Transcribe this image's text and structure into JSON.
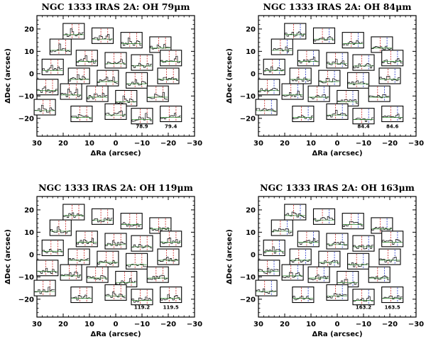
{
  "chart_data": [
    {
      "type": "spectral-map",
      "title": "NGC 1333 IRAS 2A: OH 79μm",
      "xlabel": "ΔRa (arcsec)",
      "ylabel": "ΔDec (arcsec)",
      "xlim": [
        30,
        -30
      ],
      "ylim": [
        -28,
        26
      ],
      "xticks": [
        "30",
        "20",
        "10",
        "0",
        "−10",
        "−20",
        "−30"
      ],
      "yticks": [
        "20",
        "10",
        "0",
        "−10",
        "−20"
      ],
      "line_labels": [
        "78.9",
        "79.4"
      ],
      "spaxels": [
        {
          "ra": 16,
          "dec": 19
        },
        {
          "ra": 5,
          "dec": 17
        },
        {
          "ra": -6,
          "dec": 15
        },
        {
          "ra": -17,
          "dec": 13
        },
        {
          "ra": 21,
          "dec": 12
        },
        {
          "ra": 11,
          "dec": 7
        },
        {
          "ra": 0,
          "dec": 6
        },
        {
          "ra": -10,
          "dec": 5
        },
        {
          "ra": -21,
          "dec": 7
        },
        {
          "ra": 24,
          "dec": 3
        },
        {
          "ra": 14,
          "dec": -1
        },
        {
          "ra": 3,
          "dec": -2
        },
        {
          "ra": -8,
          "dec": -3
        },
        {
          "ra": -20,
          "dec": -1
        },
        {
          "ra": 26,
          "dec": -6
        },
        {
          "ra": 17,
          "dec": -8
        },
        {
          "ra": 7,
          "dec": -9
        },
        {
          "ra": -4,
          "dec": -11
        },
        {
          "ra": -16,
          "dec": -9
        },
        {
          "ra": 27,
          "dec": -15
        },
        {
          "ra": 13,
          "dec": -18
        },
        {
          "ra": 0,
          "dec": -17
        },
        {
          "ra": -10,
          "dec": -19
        },
        {
          "ra": -21,
          "dec": -18
        }
      ]
    },
    {
      "type": "spectral-map",
      "title": "NGC 1333 IRAS 2A: OH 84μm",
      "xlabel": "ΔRa (arcsec)",
      "ylabel": "ΔDec (arcsec)",
      "xlim": [
        30,
        -30
      ],
      "ylim": [
        -28,
        26
      ],
      "xticks": [
        "30",
        "20",
        "10",
        "0",
        "−10",
        "−20",
        "−30"
      ],
      "yticks": [
        "20",
        "10",
        "0",
        "−10",
        "−20"
      ],
      "line_labels": [
        "84.4",
        "84.6"
      ],
      "spaxels": [
        {
          "ra": 16,
          "dec": 19
        },
        {
          "ra": 5,
          "dec": 17
        },
        {
          "ra": -6,
          "dec": 15
        },
        {
          "ra": -17,
          "dec": 13
        },
        {
          "ra": 21,
          "dec": 12
        },
        {
          "ra": 11,
          "dec": 7
        },
        {
          "ra": 0,
          "dec": 6
        },
        {
          "ra": -10,
          "dec": 5
        },
        {
          "ra": -21,
          "dec": 7
        },
        {
          "ra": 24,
          "dec": 3
        },
        {
          "ra": 14,
          "dec": -1
        },
        {
          "ra": 3,
          "dec": -2
        },
        {
          "ra": -8,
          "dec": -3
        },
        {
          "ra": -20,
          "dec": -1
        },
        {
          "ra": 26,
          "dec": -6
        },
        {
          "ra": 17,
          "dec": -8
        },
        {
          "ra": 7,
          "dec": -9
        },
        {
          "ra": -4,
          "dec": -11
        },
        {
          "ra": -16,
          "dec": -9
        },
        {
          "ra": 27,
          "dec": -15
        },
        {
          "ra": 13,
          "dec": -18
        },
        {
          "ra": 0,
          "dec": -17
        },
        {
          "ra": -10,
          "dec": -19
        },
        {
          "ra": -21,
          "dec": -18
        }
      ]
    },
    {
      "type": "spectral-map",
      "title": "NGC 1333 IRAS 2A: OH 119μm",
      "xlabel": "ΔRa (arcsec)",
      "ylabel": "ΔDec (arcsec)",
      "xlim": [
        30,
        -30
      ],
      "ylim": [
        -28,
        26
      ],
      "xticks": [
        "30",
        "20",
        "10",
        "0",
        "−10",
        "−20",
        "−30"
      ],
      "yticks": [
        "20",
        "10",
        "0",
        "−10",
        "−20"
      ],
      "line_labels": [
        "119.2",
        "119.5"
      ],
      "spaxels": [
        {
          "ra": 16,
          "dec": 19
        },
        {
          "ra": 5,
          "dec": 17
        },
        {
          "ra": -6,
          "dec": 15
        },
        {
          "ra": -17,
          "dec": 13
        },
        {
          "ra": 21,
          "dec": 12
        },
        {
          "ra": 11,
          "dec": 7
        },
        {
          "ra": 0,
          "dec": 6
        },
        {
          "ra": -10,
          "dec": 5
        },
        {
          "ra": -21,
          "dec": 7
        },
        {
          "ra": 24,
          "dec": 3
        },
        {
          "ra": 14,
          "dec": -1
        },
        {
          "ra": 3,
          "dec": -2
        },
        {
          "ra": -8,
          "dec": -3
        },
        {
          "ra": -20,
          "dec": -1
        },
        {
          "ra": 26,
          "dec": -6
        },
        {
          "ra": 17,
          "dec": -8
        },
        {
          "ra": 7,
          "dec": -9
        },
        {
          "ra": -4,
          "dec": -11
        },
        {
          "ra": -16,
          "dec": -9
        },
        {
          "ra": 27,
          "dec": -15
        },
        {
          "ra": 13,
          "dec": -18
        },
        {
          "ra": 0,
          "dec": -17
        },
        {
          "ra": -10,
          "dec": -19
        },
        {
          "ra": -21,
          "dec": -18
        }
      ]
    },
    {
      "type": "spectral-map",
      "title": "NGC 1333 IRAS 2A: OH 163μm",
      "xlabel": "ΔRa (arcsec)",
      "ylabel": "ΔDec (arcsec)",
      "xlim": [
        30,
        -30
      ],
      "ylim": [
        -28,
        26
      ],
      "xticks": [
        "30",
        "20",
        "10",
        "0",
        "−10",
        "−20",
        "−30"
      ],
      "yticks": [
        "20",
        "10",
        "0",
        "−10",
        "−20"
      ],
      "line_labels": [
        "163.2",
        "163.5"
      ],
      "spaxels": [
        {
          "ra": 16,
          "dec": 19
        },
        {
          "ra": 5,
          "dec": 17
        },
        {
          "ra": -6,
          "dec": 15
        },
        {
          "ra": -17,
          "dec": 13
        },
        {
          "ra": 21,
          "dec": 12
        },
        {
          "ra": 11,
          "dec": 7
        },
        {
          "ra": 0,
          "dec": 6
        },
        {
          "ra": -10,
          "dec": 5
        },
        {
          "ra": -21,
          "dec": 7
        },
        {
          "ra": 24,
          "dec": 3
        },
        {
          "ra": 14,
          "dec": -1
        },
        {
          "ra": 3,
          "dec": -2
        },
        {
          "ra": -8,
          "dec": -3
        },
        {
          "ra": -20,
          "dec": -1
        },
        {
          "ra": 26,
          "dec": -6
        },
        {
          "ra": 17,
          "dec": -8
        },
        {
          "ra": 7,
          "dec": -9
        },
        {
          "ra": -4,
          "dec": -11
        },
        {
          "ra": -16,
          "dec": -9
        },
        {
          "ra": 27,
          "dec": -15
        },
        {
          "ra": 13,
          "dec": -18
        },
        {
          "ra": 0,
          "dec": -17
        },
        {
          "ra": -10,
          "dec": -19
        },
        {
          "ra": -21,
          "dec": -18
        }
      ]
    }
  ],
  "colors": {
    "frame": "#000000",
    "spectrum": "#000000",
    "fit": "#2a8a2a",
    "line_marker_1": "#cc2222",
    "line_marker_2": "#2233cc",
    "zero_line": "#666666"
  }
}
